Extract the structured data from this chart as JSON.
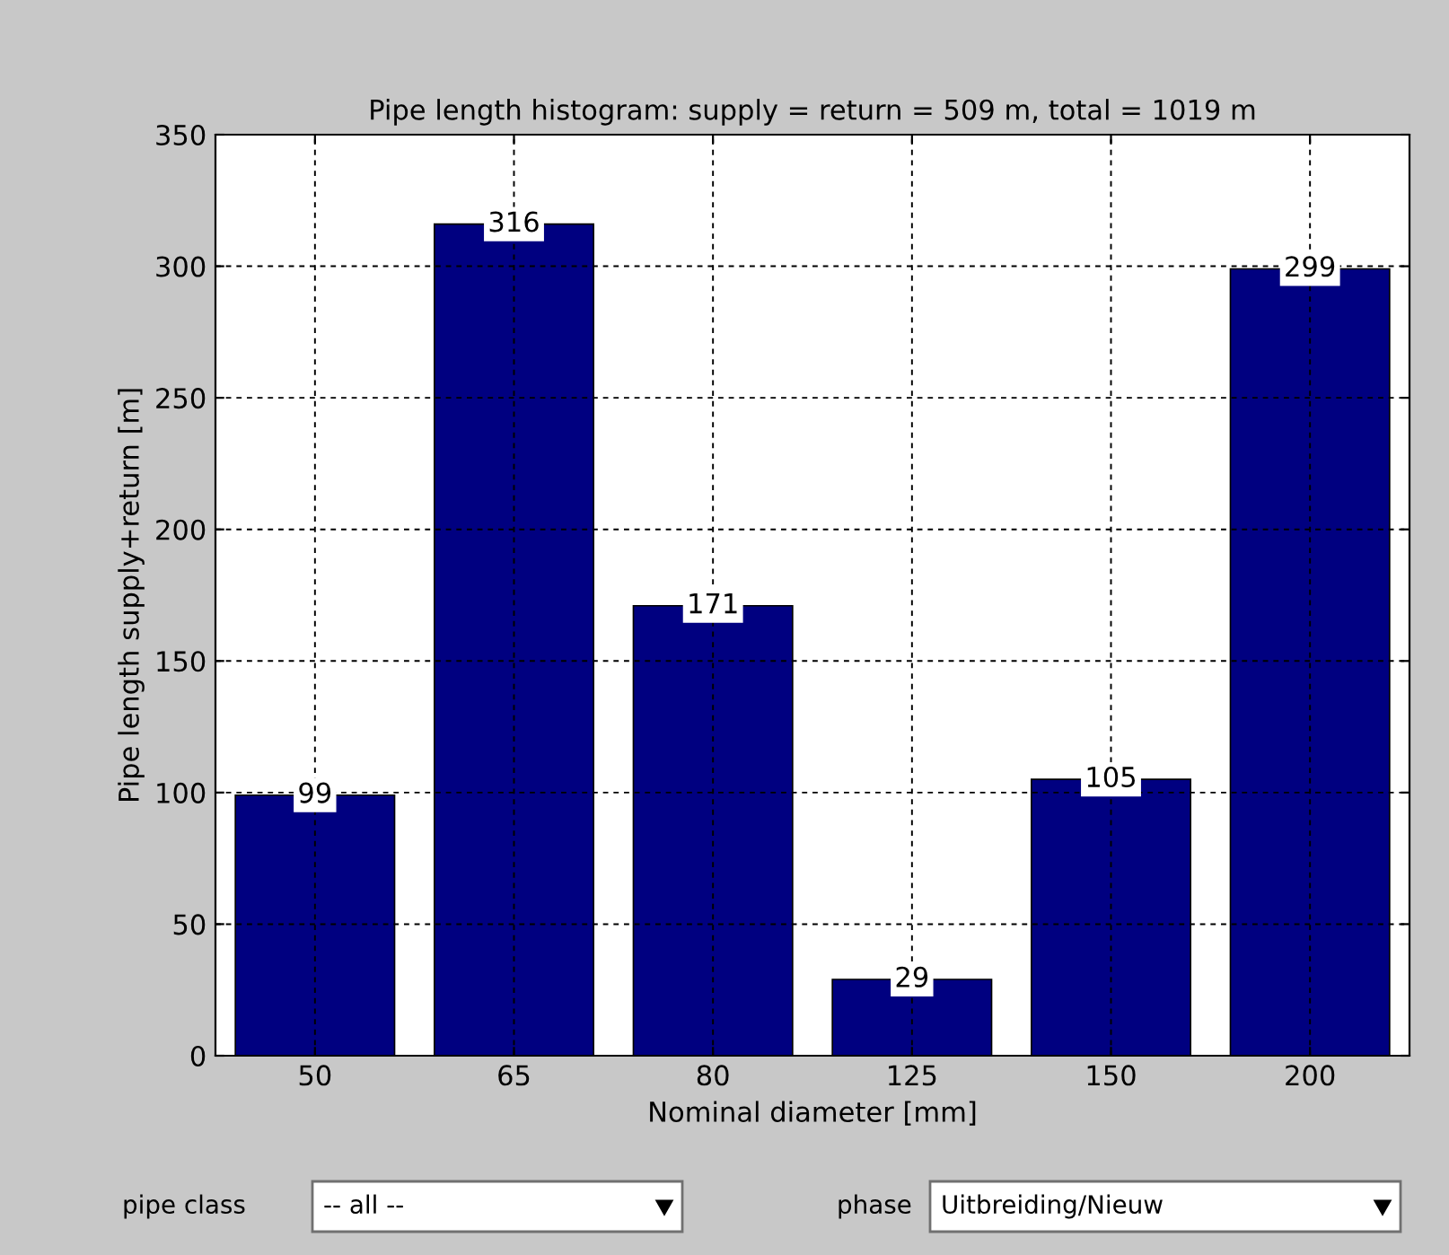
{
  "chart_data": {
    "type": "bar",
    "title": "Pipe length histogram: supply = return = 509 m, total = 1019 m",
    "xlabel": "Nominal diameter [mm]",
    "ylabel": "Pipe length supply+return [m]",
    "categories": [
      "50",
      "65",
      "80",
      "125",
      "150",
      "200"
    ],
    "values": [
      99,
      316,
      171,
      29,
      105,
      299
    ],
    "color": "#000080",
    "ylim": [
      0,
      350
    ],
    "yticks": [
      0,
      50,
      100,
      150,
      200,
      250,
      300,
      350
    ],
    "grid": true,
    "data_labels": true,
    "annotations": [
      "pipe class",
      "-- all --",
      "phase",
      "Uitbreiding/Nieuw"
    ]
  }
}
